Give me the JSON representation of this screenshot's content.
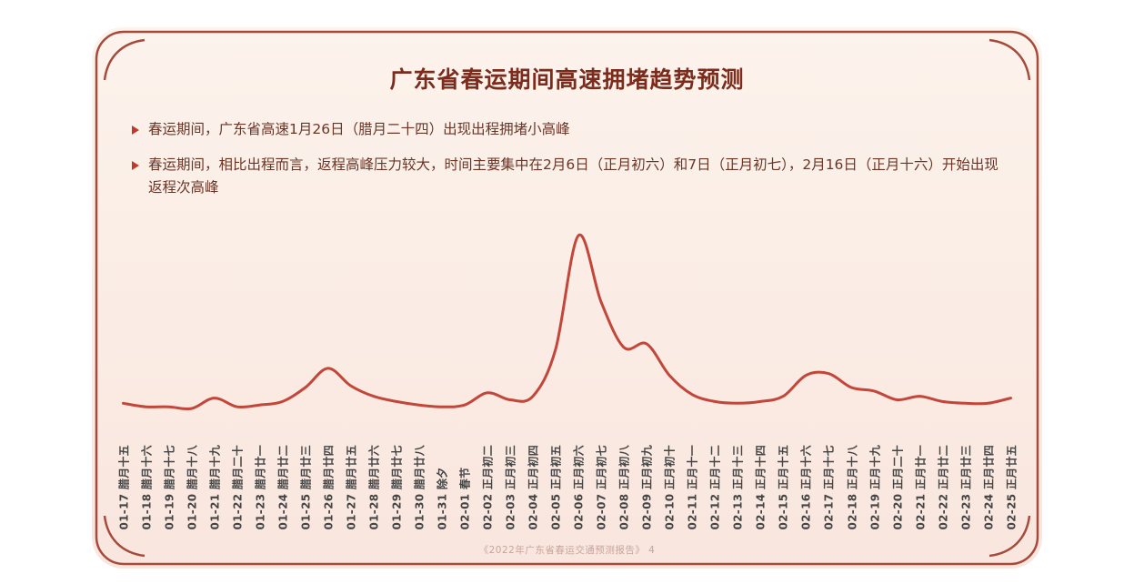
{
  "card": {
    "title": "广东省春运期间高速拥堵趋势预测",
    "bullets": [
      "春运期间，广东省高速1月26日（腊月二十四）出现出程拥堵小高峰",
      "春运期间，相比出程而言，返程高峰压力较大，时间主要集中在2月6日（正月初六）和7日（正月初七），2月16日（正月十六）开始出现返程次高峰"
    ],
    "footer": "《2022年广东省春运交通预测报告》 4"
  },
  "colors": {
    "frame": "#a64a3c",
    "card_bg_top": "#fcf3ec",
    "card_bg_bottom": "#f9e6de",
    "title": "#7b2c1d",
    "bullet_text": "#6b3526",
    "bullet_marker": "#c0392b",
    "line": "#c3463a",
    "axis_label": "#454545",
    "footer": "#c8a49b"
  },
  "chart_data": {
    "type": "line",
    "title": "广东省春运期间高速拥堵趋势预测",
    "xlabel": "",
    "ylabel": "",
    "grid": false,
    "legend": "none",
    "ylim": [
      0,
      110
    ],
    "line_color": "#c3463a",
    "categories": [
      "01-17 腊月十五",
      "01-18 腊月十六",
      "01-19 腊月十七",
      "01-20 腊月十八",
      "01-21 腊月十九",
      "01-22 腊月二十",
      "01-23 腊月廿一",
      "01-24 腊月廿二",
      "01-25 腊月廿三",
      "01-26 腊月廿四",
      "01-27 腊月廿五",
      "01-28 腊月廿六",
      "01-29 腊月廿七",
      "01-30 腊月廿八",
      "01-31 除夕",
      "02-01 春节",
      "02-02 正月初二",
      "02-03 正月初三",
      "02-04 正月初四",
      "02-05 正月初五",
      "02-06 正月初六",
      "02-07 正月初七",
      "02-08 正月初八",
      "02-09 正月初九",
      "02-10 正月初十",
      "02-11 正月十一",
      "02-12 正月十二",
      "02-13 正月十三",
      "02-14 正月十四",
      "02-15 正月十五",
      "02-16 正月十六",
      "02-17 正月十七",
      "02-18 正月十八",
      "02-19 正月十九",
      "02-20 正月二十",
      "02-21 正月廿一",
      "02-22 正月廿二",
      "02-23 正月廿三",
      "02-24 正月廿四",
      "02-25 正月廿五"
    ],
    "values": [
      4,
      2,
      2,
      1,
      7,
      2,
      3,
      5,
      13,
      24,
      14,
      8,
      5,
      3,
      2,
      3,
      10,
      6,
      8,
      35,
      100,
      62,
      36,
      38,
      20,
      9,
      5,
      4,
      5,
      8,
      20,
      21,
      13,
      11,
      6,
      8,
      5,
      4,
      4,
      7
    ]
  }
}
